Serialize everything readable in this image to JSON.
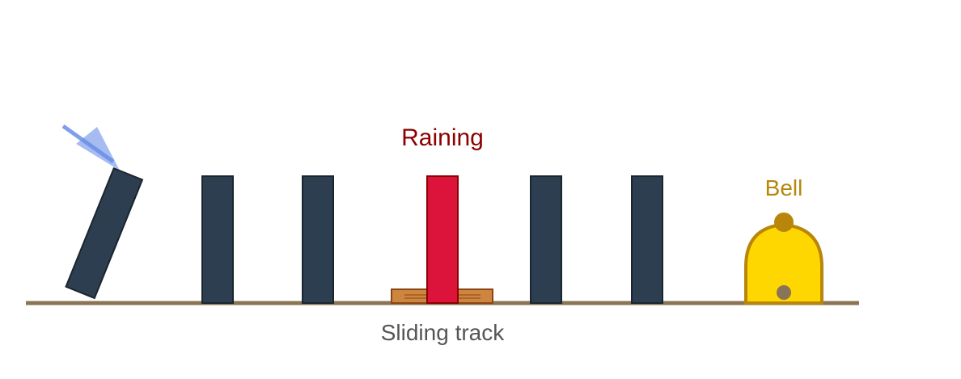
{
  "labels": {
    "raining": "Raining",
    "bell": "Bell",
    "track": "Sliding track"
  },
  "colors": {
    "domino": "#2c3e50",
    "domino_edge": "#1a252f",
    "red_domino": "#dc143c",
    "red_domino_edge": "#8b0000",
    "track": "#8b7355",
    "slider": "#cd853f",
    "slider_edge": "#8b4513",
    "bell_fill": "#ffd700",
    "bell_edge": "#b8860b",
    "bell_knob": "#8b7355",
    "arrow": "#6a8fe8",
    "raining_text": "#8b0000",
    "bell_text": "#b8860b",
    "track_text": "#555555"
  },
  "icons": {
    "push_arrow": "push-arrow-icon",
    "bell": "bell-icon"
  }
}
